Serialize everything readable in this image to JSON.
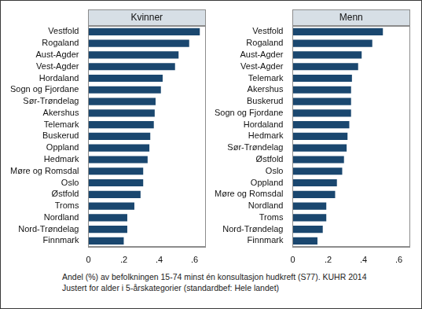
{
  "chart_data": [
    {
      "type": "bar",
      "title": "Kvinner",
      "orientation": "horizontal",
      "grid": false,
      "color": "#1a476f",
      "categories": [
        "Vestfold",
        "Rogaland",
        "Aust-Agder",
        "Vest-Agder",
        "Hordaland",
        "Sogn og Fjordane",
        "Sør-Trøndelag",
        "Akershus",
        "Telemark",
        "Buskerud",
        "Oppland",
        "Hedmark",
        "Møre og Romsdal",
        "Oslo",
        "Østfold",
        "Troms",
        "Nordland",
        "Nord-Trøndelag",
        "Finnmark"
      ],
      "values": [
        0.63,
        0.57,
        0.51,
        0.49,
        0.42,
        0.41,
        0.38,
        0.375,
        0.37,
        0.35,
        0.345,
        0.335,
        0.31,
        0.31,
        0.295,
        0.26,
        0.22,
        0.22,
        0.2
      ],
      "xlim": [
        0,
        0.66
      ],
      "xticks": [
        0,
        {
          "value": 0.2,
          "label": ".2"
        },
        {
          "value": 0.4,
          "label": ".4"
        },
        {
          "value": 0.6,
          "label": ".6"
        }
      ]
    },
    {
      "type": "bar",
      "title": "Menn",
      "orientation": "horizontal",
      "grid": false,
      "color": "#1a476f",
      "categories": [
        "Vestfold",
        "Rogaland",
        "Aust-Agder",
        "Vest-Agder",
        "Telemark",
        "Akershus",
        "Buskerud",
        "Sogn og Fjordane",
        "Hordaland",
        "Hedmark",
        "Sør-Trøndelag",
        "Østfold",
        "Oslo",
        "Oppland",
        "Møre og Romsdal",
        "Nordland",
        "Troms",
        "Nord-Trøndelag",
        "Finnmark"
      ],
      "values": [
        0.51,
        0.45,
        0.39,
        0.37,
        0.335,
        0.33,
        0.33,
        0.33,
        0.32,
        0.31,
        0.305,
        0.29,
        0.28,
        0.25,
        0.24,
        0.19,
        0.19,
        0.17,
        0.14
      ],
      "xlim": [
        0,
        0.66
      ],
      "xticks": [
        0,
        {
          "value": 0.2,
          "label": ".2"
        },
        {
          "value": 0.4,
          "label": ".4"
        },
        {
          "value": 0.6,
          "label": ".6"
        }
      ]
    }
  ],
  "caption": [
    "Andel (%) av befolkningen 15-74 minst én konsultasjon hudkreft (S77). KUHR 2014",
    "Justert for alder i 5-årskategorier (standardbef: Hele landet)"
  ]
}
